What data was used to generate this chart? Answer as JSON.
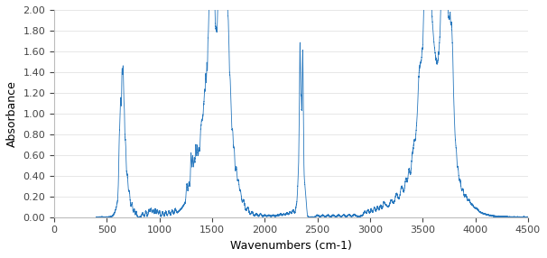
{
  "title": "",
  "xlabel": "Wavenumbers (cm-1)",
  "ylabel": "Absorbance",
  "xlim": [
    0,
    4500
  ],
  "ylim": [
    0.0,
    2.0
  ],
  "xticks": [
    0,
    500,
    1000,
    1500,
    2000,
    2500,
    3000,
    3500,
    4000,
    4500
  ],
  "yticks": [
    0.0,
    0.2,
    0.4,
    0.6,
    0.8,
    1.0,
    1.2,
    1.4,
    1.6,
    1.8,
    2.0
  ],
  "line_color": "#2878be",
  "line_width": 0.6,
  "background_color": "#ffffff"
}
